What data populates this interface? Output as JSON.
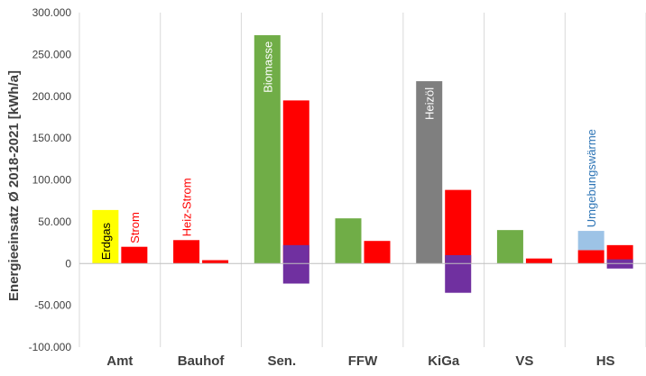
{
  "chart_data": {
    "type": "bar",
    "ylabel": "Energieeinsatz Ø 2018-2021 [kWh/a]",
    "ylim": [
      -100000,
      300000
    ],
    "yticks": [
      -100000,
      -50000,
      0,
      50000,
      100000,
      150000,
      200000,
      250000,
      300000
    ],
    "ytick_labels": [
      "-100.000",
      "-50.000",
      "0",
      "50.000",
      "100.000",
      "150.000",
      "200.000",
      "250.000",
      "300.000"
    ],
    "grid": "vertical separators between categories",
    "legend": "none",
    "categories": [
      "Amt",
      "Bauhof",
      "Sen.",
      "FFW",
      "KiGa",
      "VS",
      "HS"
    ],
    "heat_bars": [
      {
        "category": "Amt",
        "segments": [
          {
            "name": "Erdgas",
            "value": 64000,
            "color": "#FFFF00"
          }
        ]
      },
      {
        "category": "Bauhof",
        "segments": [
          {
            "name": "Heiz-Strom",
            "value": 28000,
            "color": "#FF0000"
          }
        ]
      },
      {
        "category": "Sen.",
        "segments": [
          {
            "name": "Biomasse",
            "value": 273000,
            "color": "#70AD47"
          }
        ]
      },
      {
        "category": "FFW",
        "segments": [
          {
            "name": "Biomasse",
            "value": 54000,
            "color": "#70AD47"
          }
        ]
      },
      {
        "category": "KiGa",
        "segments": [
          {
            "name": "Heizöl",
            "value": 218000,
            "color": "#7F7F7F"
          }
        ]
      },
      {
        "category": "VS",
        "segments": [
          {
            "name": "Biomasse",
            "value": 40000,
            "color": "#70AD47"
          }
        ]
      },
      {
        "category": "HS",
        "segments": [
          {
            "name": "Heiz-Strom",
            "value": 16000,
            "color": "#FF0000"
          },
          {
            "name": "Umgebungswärme",
            "value": 23000,
            "color": "#9DC3E6"
          }
        ]
      }
    ],
    "power_bars": [
      {
        "category": "Amt",
        "strom": 20000,
        "pv_positive": 0,
        "pv_negative": 0
      },
      {
        "category": "Bauhof",
        "strom": 4000,
        "pv_positive": 0,
        "pv_negative": 0
      },
      {
        "category": "Sen.",
        "strom": 195000,
        "pv_positive": 22000,
        "pv_negative": -24000
      },
      {
        "category": "FFW",
        "strom": 27000,
        "pv_positive": 0,
        "pv_negative": 0
      },
      {
        "category": "KiGa",
        "strom": 88000,
        "pv_positive": 10000,
        "pv_negative": -35000
      },
      {
        "category": "VS",
        "strom": 6000,
        "pv_positive": 0,
        "pv_negative": 0
      },
      {
        "category": "HS",
        "strom": 22000,
        "pv_positive": 5000,
        "pv_negative": -6000
      }
    ],
    "colors": {
      "strom": "#FF0000",
      "pv": "#7030A0",
      "axis_text": "#404040",
      "grid": "#D9D9D9"
    },
    "annotations": [
      {
        "text": "Erdgas",
        "category": "Amt",
        "color": "#000000"
      },
      {
        "text": "Strom",
        "category": "Amt",
        "color": "#FF0000"
      },
      {
        "text": "Heiz-Strom",
        "category": "Bauhof",
        "color": "#FF0000"
      },
      {
        "text": "Biomasse",
        "category": "Sen.",
        "color": "#FFFFFF"
      },
      {
        "text": "Heizöl",
        "category": "KiGa",
        "color": "#FFFFFF"
      },
      {
        "text": "Umgebungswärme",
        "category": "HS",
        "color": "#2E75B6"
      }
    ]
  }
}
